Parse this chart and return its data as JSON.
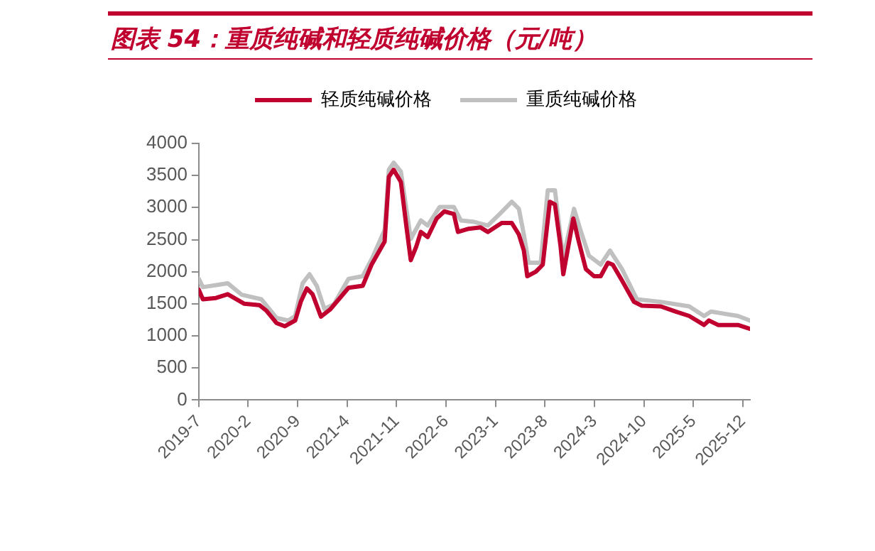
{
  "chart_data": {
    "type": "line",
    "title": "图表 54：重质纯碱和轻质纯碱价格（元/吨）",
    "xlim": [
      "2019-07",
      "2026-01"
    ],
    "xticks": [
      {
        "value": "2019-07",
        "label": "2019-7"
      },
      {
        "value": "2020-02",
        "label": "2020-2"
      },
      {
        "value": "2020-09",
        "label": "2020-9"
      },
      {
        "value": "2021-04",
        "label": "2021-4"
      },
      {
        "value": "2021-11",
        "label": "2021-11"
      },
      {
        "value": "2022-06",
        "label": "2022-6"
      },
      {
        "value": "2023-01",
        "label": "2023-1"
      },
      {
        "value": "2023-08",
        "label": "2023-8"
      },
      {
        "value": "2024-03",
        "label": "2024-3"
      },
      {
        "value": "2024-10",
        "label": "2024-10"
      },
      {
        "value": "2025-05",
        "label": "2025-5"
      },
      {
        "value": "2025-12",
        "label": "2025-12"
      }
    ],
    "ylim": [
      0,
      4000
    ],
    "yticks": [
      0,
      500,
      1000,
      1500,
      2000,
      2500,
      3000,
      3500,
      4000
    ],
    "grid": false,
    "legend": "top",
    "marker": "none",
    "line_style": "solid",
    "series": [
      {
        "name": "轻质纯碱价格",
        "color": "#c0002f",
        "x": [
          "2019-07-01",
          "2019-07-19",
          "2019-09-14",
          "2019-11-04",
          "2020-01-15",
          "2020-03-19",
          "2020-04-19",
          "2020-06-01",
          "2020-07-07",
          "2020-08-21",
          "2020-09-15",
          "2020-10-10",
          "2020-11-04",
          "2020-12-10",
          "2021-01-19",
          "2021-04-07",
          "2021-06-07",
          "2021-07-15",
          "2021-09-10",
          "2021-09-28",
          "2021-10-19",
          "2021-11-19",
          "2021-12-13",
          "2022-01-01",
          "2022-01-25",
          "2022-02-13",
          "2022-03-13",
          "2022-04-21",
          "2022-05-24",
          "2022-07-04",
          "2022-07-22",
          "2022-09-07",
          "2022-10-28",
          "2022-11-28",
          "2023-01-28",
          "2023-03-10",
          "2023-04-10",
          "2023-05-01",
          "2023-05-16",
          "2023-06-22",
          "2023-07-22",
          "2023-08-22",
          "2023-09-13",
          "2023-10-07",
          "2023-10-19",
          "2023-12-01",
          "2023-12-25",
          "2024-01-25",
          "2024-02-28",
          "2024-03-28",
          "2024-04-28",
          "2024-05-19",
          "2024-06-28",
          "2024-08-19",
          "2024-09-22",
          "2024-12-13",
          "2025-02-13",
          "2025-04-13",
          "2025-06-16",
          "2025-07-07",
          "2025-08-16",
          "2025-11-10",
          "2026-01-01"
        ],
        "values": [
          1720,
          1570,
          1590,
          1650,
          1500,
          1480,
          1390,
          1200,
          1150,
          1240,
          1540,
          1740,
          1650,
          1300,
          1410,
          1750,
          1780,
          2110,
          2470,
          3480,
          3590,
          3400,
          2700,
          2180,
          2390,
          2620,
          2540,
          2830,
          2940,
          2900,
          2620,
          2670,
          2690,
          2620,
          2760,
          2760,
          2580,
          2330,
          1930,
          2000,
          2110,
          3090,
          3050,
          2400,
          1960,
          2830,
          2470,
          2040,
          1930,
          1930,
          2140,
          2110,
          1860,
          1530,
          1470,
          1460,
          1380,
          1310,
          1170,
          1240,
          1170,
          1170,
          1110
        ]
      },
      {
        "name": "重质纯碱价格",
        "color": "#c0c0c0",
        "x": [
          "2019-07-01",
          "2019-07-19",
          "2019-11-04",
          "2020-01-04",
          "2020-03-28",
          "2020-06-01",
          "2020-07-22",
          "2020-08-21",
          "2020-09-22",
          "2020-10-22",
          "2020-11-22",
          "2020-12-25",
          "2021-02-04",
          "2021-04-07",
          "2021-06-07",
          "2021-07-19",
          "2021-09-10",
          "2021-09-28",
          "2021-10-19",
          "2021-11-19",
          "2022-01-01",
          "2022-02-13",
          "2022-03-13",
          "2022-05-04",
          "2022-07-04",
          "2022-08-04",
          "2022-09-25",
          "2022-11-28",
          "2023-01-19",
          "2023-03-10",
          "2023-04-10",
          "2023-05-01",
          "2023-05-22",
          "2023-07-13",
          "2023-08-13",
          "2023-09-13",
          "2023-10-07",
          "2023-10-19",
          "2023-12-04",
          "2024-01-04",
          "2024-02-07",
          "2024-03-28",
          "2024-05-07",
          "2024-06-28",
          "2024-09-01",
          "2024-12-13",
          "2025-04-13",
          "2025-06-16",
          "2025-07-16",
          "2025-11-10",
          "2026-01-01"
        ],
        "values": [
          1890,
          1760,
          1820,
          1640,
          1570,
          1280,
          1240,
          1310,
          1820,
          1960,
          1780,
          1420,
          1490,
          1890,
          1930,
          2220,
          2650,
          3590,
          3700,
          3560,
          2510,
          2800,
          2720,
          3010,
          3010,
          2800,
          2780,
          2720,
          2900,
          3090,
          2980,
          2580,
          2140,
          2140,
          3270,
          3270,
          2540,
          2220,
          2980,
          2620,
          2250,
          2110,
          2330,
          2040,
          1570,
          1530,
          1460,
          1310,
          1380,
          1310,
          1240
        ]
      }
    ]
  }
}
